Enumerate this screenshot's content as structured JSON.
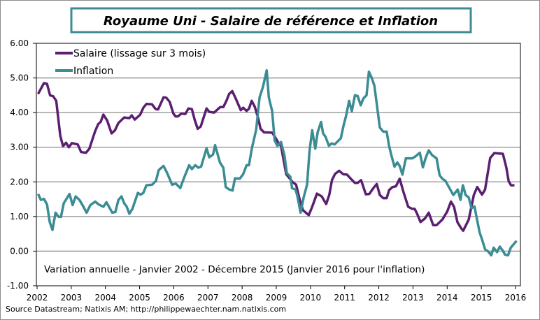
{
  "chart_data": {
    "type": "line",
    "title": "Royaume Uni - Salaire de référence et Inflation",
    "annotation": "Variation annuelle  - Janvier 2002 - Décembre 2015 (Janvier 2016 pour l'inflation)",
    "source": "Source Datastream; Natixis AM; http://philippewaechter.nam.natixis.com",
    "xlabel": "",
    "ylabel": "",
    "xlim": [
      2002,
      2016
    ],
    "ylim": [
      -1,
      6
    ],
    "x_ticks": [
      "2002",
      "2003",
      "2004",
      "2005",
      "2006",
      "2007",
      "2008",
      "2009",
      "2010",
      "2011",
      "2012",
      "2013",
      "2014",
      "2015",
      "2016"
    ],
    "y_ticks": [
      "-1.00",
      "0.00",
      "1.00",
      "2.00",
      "3.00",
      "4.00",
      "5.00",
      "6.00"
    ],
    "grid": "horizontal",
    "legend_position": "top-left",
    "colors": {
      "salaire": "#5b1f72",
      "inflation": "#3b8c93",
      "title_border": "#3b8c93",
      "grid": "#8c8c8c"
    },
    "series": [
      {
        "name": "Salaire (lissage sur 3 mois)",
        "points": [
          [
            2002.03,
            4.54
          ],
          [
            2002.2,
            4.85
          ],
          [
            2002.29,
            4.83
          ],
          [
            2002.38,
            4.5
          ],
          [
            2002.47,
            4.47
          ],
          [
            2002.56,
            4.34
          ],
          [
            2002.68,
            3.33
          ],
          [
            2002.76,
            3.03
          ],
          [
            2002.85,
            3.13
          ],
          [
            2002.93,
            3.0
          ],
          [
            2003.02,
            3.12
          ],
          [
            2003.19,
            3.08
          ],
          [
            2003.29,
            2.86
          ],
          [
            2003.43,
            2.84
          ],
          [
            2003.53,
            2.96
          ],
          [
            2003.7,
            3.47
          ],
          [
            2003.79,
            3.67
          ],
          [
            2003.86,
            3.73
          ],
          [
            2003.94,
            3.94
          ],
          [
            2004.05,
            3.77
          ],
          [
            2004.18,
            3.4
          ],
          [
            2004.28,
            3.49
          ],
          [
            2004.38,
            3.7
          ],
          [
            2004.55,
            3.86
          ],
          [
            2004.7,
            3.84
          ],
          [
            2004.77,
            3.92
          ],
          [
            2004.86,
            3.8
          ],
          [
            2005.02,
            3.94
          ],
          [
            2005.11,
            4.14
          ],
          [
            2005.2,
            4.25
          ],
          [
            2005.36,
            4.24
          ],
          [
            2005.47,
            4.1
          ],
          [
            2005.54,
            4.09
          ],
          [
            2005.7,
            4.44
          ],
          [
            2005.78,
            4.43
          ],
          [
            2005.88,
            4.31
          ],
          [
            2005.99,
            3.97
          ],
          [
            2006.05,
            3.89
          ],
          [
            2006.12,
            3.89
          ],
          [
            2006.22,
            3.97
          ],
          [
            2006.34,
            3.96
          ],
          [
            2006.43,
            4.12
          ],
          [
            2006.53,
            4.1
          ],
          [
            2006.61,
            3.8
          ],
          [
            2006.7,
            3.53
          ],
          [
            2006.79,
            3.6
          ],
          [
            2006.96,
            4.12
          ],
          [
            2007.04,
            4.02
          ],
          [
            2007.18,
            4.0
          ],
          [
            2007.28,
            4.09
          ],
          [
            2007.36,
            4.16
          ],
          [
            2007.45,
            4.16
          ],
          [
            2007.54,
            4.34
          ],
          [
            2007.62,
            4.54
          ],
          [
            2007.71,
            4.62
          ],
          [
            2007.81,
            4.41
          ],
          [
            2007.96,
            4.07
          ],
          [
            2008.03,
            4.14
          ],
          [
            2008.13,
            4.05
          ],
          [
            2008.2,
            4.11
          ],
          [
            2008.28,
            4.34
          ],
          [
            2008.37,
            4.17
          ],
          [
            2008.47,
            3.84
          ],
          [
            2008.54,
            3.53
          ],
          [
            2008.64,
            3.43
          ],
          [
            2008.88,
            3.42
          ],
          [
            2008.96,
            3.3
          ],
          [
            2009.04,
            3.16
          ],
          [
            2009.14,
            3.03
          ],
          [
            2009.29,
            2.22
          ],
          [
            2009.48,
            1.99
          ],
          [
            2009.58,
            1.92
          ],
          [
            2009.68,
            1.51
          ],
          [
            2009.78,
            1.18
          ],
          [
            2009.95,
            1.04
          ],
          [
            2010.05,
            1.28
          ],
          [
            2010.19,
            1.66
          ],
          [
            2010.33,
            1.58
          ],
          [
            2010.46,
            1.36
          ],
          [
            2010.55,
            1.62
          ],
          [
            2010.63,
            2.05
          ],
          [
            2010.72,
            2.23
          ],
          [
            2010.84,
            2.32
          ],
          [
            2010.96,
            2.22
          ],
          [
            2011.07,
            2.21
          ],
          [
            2011.18,
            2.09
          ],
          [
            2011.3,
            1.97
          ],
          [
            2011.38,
            1.97
          ],
          [
            2011.48,
            2.05
          ],
          [
            2011.62,
            1.64
          ],
          [
            2011.72,
            1.65
          ],
          [
            2011.84,
            1.82
          ],
          [
            2011.94,
            1.94
          ],
          [
            2012.03,
            1.62
          ],
          [
            2012.13,
            1.53
          ],
          [
            2012.23,
            1.53
          ],
          [
            2012.3,
            1.76
          ],
          [
            2012.4,
            1.85
          ],
          [
            2012.5,
            1.87
          ],
          [
            2012.61,
            2.09
          ],
          [
            2012.73,
            1.68
          ],
          [
            2012.86,
            1.28
          ],
          [
            2012.98,
            1.22
          ],
          [
            2013.05,
            1.22
          ],
          [
            2013.12,
            1.08
          ],
          [
            2013.22,
            0.84
          ],
          [
            2013.35,
            0.94
          ],
          [
            2013.46,
            1.11
          ],
          [
            2013.59,
            0.75
          ],
          [
            2013.69,
            0.75
          ],
          [
            2013.86,
            0.91
          ],
          [
            2014.0,
            1.14
          ],
          [
            2014.11,
            1.43
          ],
          [
            2014.2,
            1.28
          ],
          [
            2014.3,
            0.84
          ],
          [
            2014.41,
            0.66
          ],
          [
            2014.47,
            0.59
          ],
          [
            2014.63,
            0.91
          ],
          [
            2014.78,
            1.62
          ],
          [
            2014.88,
            1.85
          ],
          [
            2015.02,
            1.63
          ],
          [
            2015.11,
            1.78
          ],
          [
            2015.26,
            2.69
          ],
          [
            2015.38,
            2.83
          ],
          [
            2015.63,
            2.81
          ],
          [
            2015.73,
            2.42
          ],
          [
            2015.8,
            2.02
          ],
          [
            2015.87,
            1.9
          ],
          [
            2015.97,
            1.9
          ]
        ]
      },
      {
        "name": "Inflation",
        "points": [
          [
            2002.03,
            1.65
          ],
          [
            2002.11,
            1.48
          ],
          [
            2002.2,
            1.51
          ],
          [
            2002.29,
            1.35
          ],
          [
            2002.37,
            0.84
          ],
          [
            2002.45,
            0.61
          ],
          [
            2002.54,
            1.11
          ],
          [
            2002.63,
            0.99
          ],
          [
            2002.7,
            0.99
          ],
          [
            2002.78,
            1.38
          ],
          [
            2002.95,
            1.65
          ],
          [
            2003.04,
            1.33
          ],
          [
            2003.13,
            1.58
          ],
          [
            2003.24,
            1.48
          ],
          [
            2003.34,
            1.31
          ],
          [
            2003.45,
            1.11
          ],
          [
            2003.56,
            1.33
          ],
          [
            2003.7,
            1.43
          ],
          [
            2003.8,
            1.35
          ],
          [
            2003.94,
            1.28
          ],
          [
            2004.03,
            1.41
          ],
          [
            2004.2,
            1.11
          ],
          [
            2004.29,
            1.13
          ],
          [
            2004.38,
            1.48
          ],
          [
            2004.47,
            1.58
          ],
          [
            2004.55,
            1.38
          ],
          [
            2004.62,
            1.29
          ],
          [
            2004.7,
            1.08
          ],
          [
            2004.79,
            1.22
          ],
          [
            2004.95,
            1.68
          ],
          [
            2005.03,
            1.63
          ],
          [
            2005.11,
            1.68
          ],
          [
            2005.2,
            1.9
          ],
          [
            2005.37,
            1.92
          ],
          [
            2005.48,
            2.03
          ],
          [
            2005.56,
            2.34
          ],
          [
            2005.7,
            2.46
          ],
          [
            2005.81,
            2.25
          ],
          [
            2005.95,
            1.92
          ],
          [
            2006.06,
            1.95
          ],
          [
            2006.19,
            1.82
          ],
          [
            2006.31,
            2.14
          ],
          [
            2006.45,
            2.48
          ],
          [
            2006.53,
            2.37
          ],
          [
            2006.63,
            2.48
          ],
          [
            2006.72,
            2.41
          ],
          [
            2006.8,
            2.44
          ],
          [
            2006.96,
            2.97
          ],
          [
            2007.04,
            2.71
          ],
          [
            2007.15,
            2.79
          ],
          [
            2007.21,
            3.06
          ],
          [
            2007.35,
            2.56
          ],
          [
            2007.45,
            2.41
          ],
          [
            2007.52,
            1.85
          ],
          [
            2007.62,
            1.78
          ],
          [
            2007.72,
            1.75
          ],
          [
            2007.79,
            2.1
          ],
          [
            2007.93,
            2.09
          ],
          [
            2008.03,
            2.22
          ],
          [
            2008.13,
            2.48
          ],
          [
            2008.2,
            2.48
          ],
          [
            2008.29,
            2.99
          ],
          [
            2008.41,
            3.5
          ],
          [
            2008.51,
            4.44
          ],
          [
            2008.61,
            4.74
          ],
          [
            2008.72,
            5.22
          ],
          [
            2008.78,
            4.44
          ],
          [
            2008.88,
            4.04
          ],
          [
            2008.95,
            3.2
          ],
          [
            2009.03,
            3.04
          ],
          [
            2009.14,
            3.15
          ],
          [
            2009.24,
            2.76
          ],
          [
            2009.31,
            2.25
          ],
          [
            2009.41,
            2.15
          ],
          [
            2009.46,
            1.82
          ],
          [
            2009.56,
            1.78
          ],
          [
            2009.61,
            1.62
          ],
          [
            2009.71,
            1.11
          ],
          [
            2009.8,
            1.55
          ],
          [
            2009.9,
            1.92
          ],
          [
            2009.97,
            2.87
          ],
          [
            2010.05,
            3.49
          ],
          [
            2010.14,
            2.96
          ],
          [
            2010.21,
            3.43
          ],
          [
            2010.31,
            3.73
          ],
          [
            2010.37,
            3.4
          ],
          [
            2010.44,
            3.3
          ],
          [
            2010.54,
            3.04
          ],
          [
            2010.62,
            3.11
          ],
          [
            2010.71,
            3.08
          ],
          [
            2010.89,
            3.26
          ],
          [
            2010.97,
            3.63
          ],
          [
            2011.04,
            3.9
          ],
          [
            2011.13,
            4.34
          ],
          [
            2011.21,
            4.04
          ],
          [
            2011.3,
            4.5
          ],
          [
            2011.38,
            4.48
          ],
          [
            2011.47,
            4.21
          ],
          [
            2011.55,
            4.41
          ],
          [
            2011.64,
            4.5
          ],
          [
            2011.71,
            5.18
          ],
          [
            2011.79,
            5.01
          ],
          [
            2011.87,
            4.78
          ],
          [
            2011.96,
            4.1
          ],
          [
            2012.03,
            3.57
          ],
          [
            2012.13,
            3.45
          ],
          [
            2012.23,
            3.45
          ],
          [
            2012.3,
            3.04
          ],
          [
            2012.37,
            2.76
          ],
          [
            2012.46,
            2.44
          ],
          [
            2012.54,
            2.56
          ],
          [
            2012.61,
            2.46
          ],
          [
            2012.69,
            2.21
          ],
          [
            2012.79,
            2.68
          ],
          [
            2012.98,
            2.68
          ],
          [
            2013.08,
            2.74
          ],
          [
            2013.2,
            2.84
          ],
          [
            2013.29,
            2.42
          ],
          [
            2013.37,
            2.69
          ],
          [
            2013.46,
            2.91
          ],
          [
            2013.56,
            2.77
          ],
          [
            2013.69,
            2.68
          ],
          [
            2013.78,
            2.19
          ],
          [
            2013.86,
            2.09
          ],
          [
            2013.95,
            2.03
          ],
          [
            2014.05,
            1.85
          ],
          [
            2014.18,
            1.62
          ],
          [
            2014.31,
            1.78
          ],
          [
            2014.39,
            1.48
          ],
          [
            2014.46,
            1.9
          ],
          [
            2014.54,
            1.62
          ],
          [
            2014.63,
            1.55
          ],
          [
            2014.71,
            1.24
          ],
          [
            2014.8,
            1.29
          ],
          [
            2014.86,
            0.98
          ],
          [
            2014.95,
            0.54
          ],
          [
            2015.02,
            0.34
          ],
          [
            2015.11,
            0.05
          ],
          [
            2015.2,
            -0.01
          ],
          [
            2015.29,
            -0.12
          ],
          [
            2015.36,
            0.1
          ],
          [
            2015.46,
            -0.03
          ],
          [
            2015.54,
            0.13
          ],
          [
            2015.63,
            0.01
          ],
          [
            2015.69,
            -0.1
          ],
          [
            2015.78,
            -0.12
          ],
          [
            2015.86,
            0.1
          ],
          [
            2016.03,
            0.3
          ]
        ]
      }
    ]
  }
}
